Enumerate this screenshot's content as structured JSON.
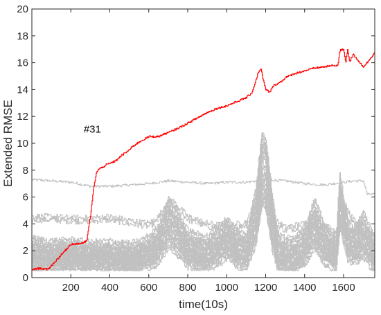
{
  "chart_data": {
    "type": "line",
    "xlabel": "time(10s)",
    "ylabel": "Extended RMSE",
    "xlim": [
      0,
      1760
    ],
    "ylim": [
      0,
      20
    ],
    "x_ticks": [
      200,
      400,
      600,
      800,
      1000,
      1200,
      1400,
      1600
    ],
    "y_ticks": [
      0,
      2,
      4,
      6,
      8,
      10,
      12,
      14,
      16,
      18,
      20
    ],
    "grid": false,
    "annotations": [
      {
        "text": "#31",
        "x": 330,
        "y": 10.8
      }
    ],
    "highlight_color": "#ff0000",
    "background_color": "#c0c0c0",
    "series": [
      {
        "color": "#ff0000",
        "x": [
          0,
          40,
          80,
          100,
          200,
          230,
          260,
          280,
          300,
          315,
          330,
          345,
          360,
          380,
          400,
          430,
          460,
          490,
          520,
          550,
          600,
          650,
          680,
          700,
          730,
          760,
          800,
          850,
          900,
          950,
          1000,
          1050,
          1100,
          1130,
          1160,
          1175,
          1185,
          1200,
          1220,
          1240,
          1280,
          1300,
          1350,
          1400,
          1450,
          1500,
          1550,
          1570,
          1580,
          1600,
          1610,
          1620,
          1630,
          1650,
          1700,
          1720,
          1740,
          1760
        ],
        "y": [
          0.6,
          0.7,
          0.6,
          0.9,
          2.5,
          2.5,
          2.6,
          2.7,
          4.6,
          6.5,
          7.8,
          8.1,
          8.2,
          8.4,
          8.5,
          8.7,
          9.1,
          9.4,
          9.8,
          10.1,
          10.5,
          10.5,
          10.7,
          10.8,
          11.0,
          11.2,
          11.5,
          11.9,
          12.3,
          12.6,
          12.8,
          13.1,
          13.4,
          13.8,
          15.2,
          15.6,
          14.8,
          14.0,
          13.8,
          14.3,
          14.6,
          14.9,
          15.2,
          15.4,
          15.6,
          15.7,
          15.8,
          15.8,
          16.9,
          17.0,
          16.0,
          17.0,
          16.1,
          16.6,
          15.7,
          16.0,
          16.4,
          16.8
        ]
      },
      {
        "color": "#c0c0c0",
        "x": [
          0,
          100,
          200,
          300,
          400,
          500,
          600,
          700,
          800,
          900,
          1000,
          1100,
          1200,
          1300,
          1400,
          1500,
          1600,
          1650,
          1700,
          1720,
          1760
        ],
        "y": [
          7.3,
          7.2,
          7.1,
          6.8,
          6.8,
          6.9,
          7.0,
          7.2,
          7.1,
          7.0,
          7.1,
          7.1,
          7.3,
          7.2,
          7.0,
          6.9,
          7.1,
          7.2,
          7.2,
          6.2,
          6.2
        ]
      },
      {
        "color": "#c0c0c0",
        "x": [
          0,
          100,
          200,
          300,
          400,
          500,
          600,
          650,
          700,
          720,
          800,
          900,
          1000,
          1100,
          1150,
          1180,
          1200,
          1250,
          1300,
          1400,
          1500,
          1560,
          1600,
          1650,
          1700,
          1760
        ],
        "y": [
          4.3,
          4.3,
          4.2,
          4.2,
          4.3,
          4.0,
          3.8,
          4.3,
          5.6,
          5.5,
          4.3,
          3.8,
          3.6,
          3.9,
          5.5,
          6.1,
          5.8,
          4.0,
          3.5,
          3.8,
          3.6,
          3.3,
          5.2,
          4.1,
          3.0,
          2.5
        ]
      },
      {
        "color": "#c0c0c0",
        "x": [
          0,
          100,
          200,
          300,
          400,
          500,
          550,
          600,
          650,
          700,
          750,
          800,
          850,
          900,
          950,
          1000,
          1050,
          1100,
          1150,
          1180,
          1200,
          1230,
          1260,
          1300,
          1350,
          1400,
          1450,
          1500,
          1560,
          1580,
          1620,
          1650,
          1700,
          1760
        ],
        "y": [
          2.6,
          2.4,
          2.5,
          2.3,
          2.4,
          2.2,
          2.4,
          2.8,
          3.5,
          5.5,
          4.5,
          3.2,
          2.9,
          2.8,
          3.4,
          4.1,
          3.2,
          2.9,
          6.5,
          10.5,
          10.0,
          6.2,
          3.0,
          2.6,
          2.7,
          3.5,
          5.5,
          3.6,
          2.6,
          7.3,
          4.0,
          3.6,
          4.5,
          2.7
        ]
      },
      {
        "color": "#c0c0c0",
        "x": [
          0,
          100,
          200,
          300,
          400,
          500,
          550,
          600,
          650,
          700,
          750,
          800,
          850,
          900,
          950,
          1000,
          1050,
          1100,
          1150,
          1180,
          1200,
          1230,
          1260,
          1300,
          1350,
          1400,
          1450,
          1500,
          1560,
          1580,
          1620,
          1650,
          1700,
          1760
        ],
        "y": [
          2.1,
          2.0,
          2.1,
          1.9,
          2.0,
          1.8,
          2.0,
          2.3,
          3.0,
          4.8,
          3.8,
          2.6,
          2.3,
          2.2,
          2.8,
          3.5,
          2.6,
          2.3,
          5.5,
          9.5,
          9.0,
          5.2,
          2.3,
          2.0,
          2.1,
          2.9,
          4.8,
          3.0,
          2.0,
          6.5,
          3.3,
          3.0,
          3.8,
          2.1
        ]
      },
      {
        "color": "#c0c0c0",
        "x": [
          0,
          100,
          200,
          300,
          400,
          500,
          550,
          600,
          650,
          700,
          750,
          800,
          850,
          900,
          950,
          1000,
          1050,
          1100,
          1150,
          1180,
          1200,
          1230,
          1260,
          1300,
          1350,
          1400,
          1450,
          1500,
          1560,
          1580,
          1620,
          1650,
          1700,
          1760
        ],
        "y": [
          1.7,
          1.6,
          1.7,
          1.5,
          1.6,
          1.4,
          1.6,
          1.9,
          2.6,
          4.2,
          3.2,
          2.1,
          1.8,
          1.7,
          2.3,
          3.0,
          2.1,
          1.8,
          4.6,
          8.3,
          7.8,
          4.4,
          1.7,
          1.5,
          1.6,
          2.4,
          4.1,
          2.5,
          1.6,
          5.8,
          2.8,
          2.5,
          3.2,
          1.6
        ]
      },
      {
        "color": "#c0c0c0",
        "x": [
          0,
          100,
          200,
          300,
          400,
          500,
          550,
          600,
          650,
          700,
          750,
          800,
          850,
          900,
          950,
          1000,
          1050,
          1100,
          1150,
          1180,
          1200,
          1230,
          1260,
          1300,
          1350,
          1400,
          1450,
          1500,
          1560,
          1580,
          1620,
          1650,
          1700,
          1760
        ],
        "y": [
          1.3,
          1.2,
          1.3,
          1.2,
          1.3,
          1.1,
          1.3,
          1.5,
          2.1,
          3.5,
          2.6,
          1.7,
          1.4,
          1.3,
          1.8,
          2.5,
          1.7,
          1.4,
          3.8,
          7.2,
          6.6,
          3.6,
          1.3,
          1.1,
          1.2,
          1.9,
          3.4,
          2.0,
          1.2,
          5.0,
          2.3,
          2.0,
          2.6,
          1.2
        ]
      },
      {
        "color": "#c0c0c0",
        "x": [
          0,
          100,
          200,
          300,
          400,
          500,
          550,
          600,
          650,
          700,
          750,
          800,
          850,
          900,
          950,
          1000,
          1050,
          1100,
          1150,
          1180,
          1200,
          1230,
          1260,
          1300,
          1350,
          1400,
          1450,
          1500,
          1560,
          1580,
          1620,
          1650,
          1700,
          1760
        ],
        "y": [
          0.9,
          0.9,
          1.0,
          0.9,
          1.0,
          0.8,
          1.0,
          1.1,
          1.6,
          2.8,
          2.0,
          1.3,
          1.0,
          1.0,
          1.4,
          2.0,
          1.3,
          1.0,
          3.0,
          6.0,
          5.5,
          2.8,
          0.9,
          0.8,
          0.9,
          1.4,
          2.7,
          1.5,
          0.9,
          4.2,
          1.8,
          1.5,
          2.0,
          0.8
        ]
      }
    ]
  }
}
